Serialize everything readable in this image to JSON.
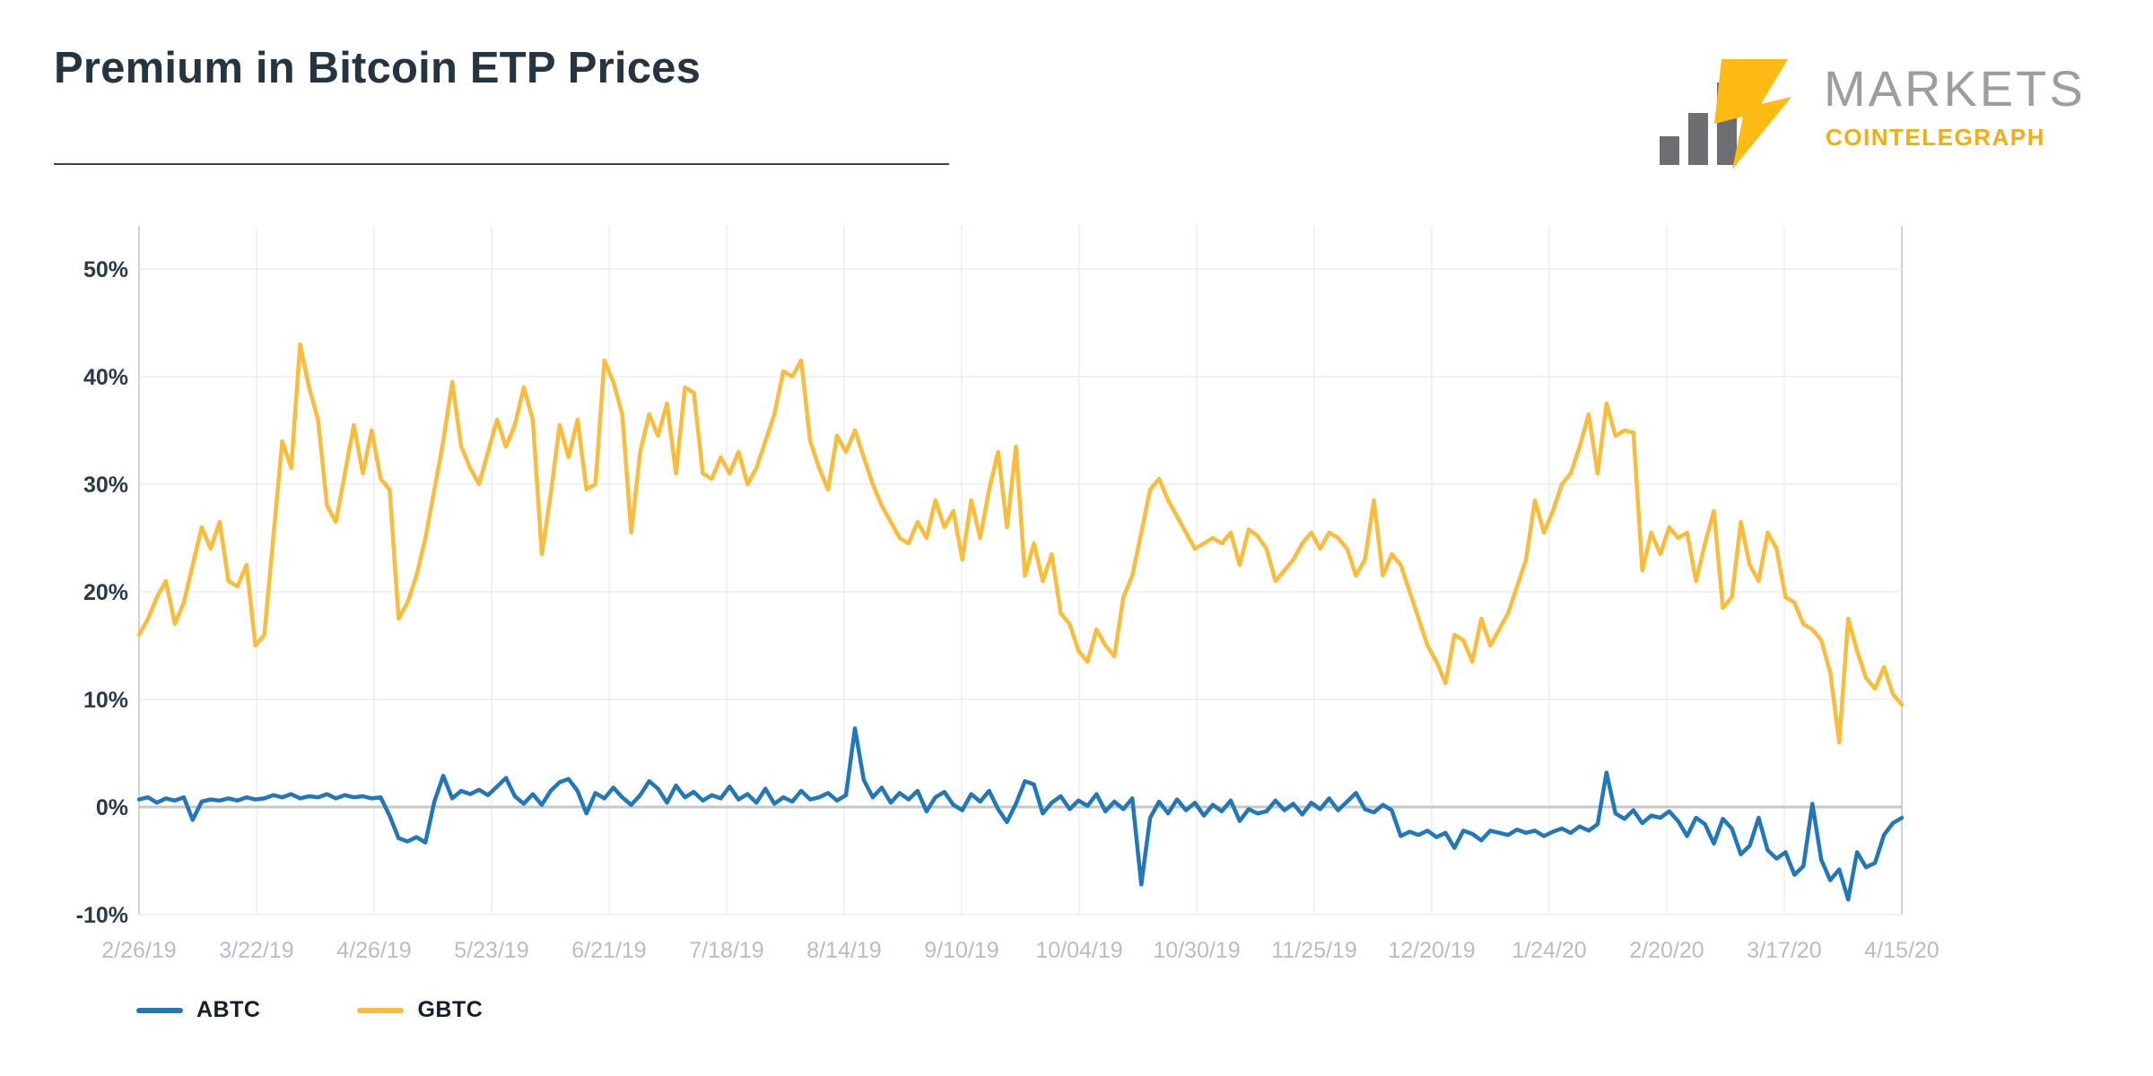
{
  "header": {
    "title": "Premium in Bitcoin ETP Prices",
    "brand": {
      "markets": "MARKETS",
      "cointelegraph": "COINTELEGRAPH"
    }
  },
  "colors": {
    "abtc": "#2177b8",
    "gbtc": "#fbbc3b",
    "title_text": "#253441",
    "axis_label_dark": "#2c3947",
    "axis_label_light": "#b7bdc4",
    "grid": "#ebedef",
    "zero_line": "#c6c8ca",
    "axis_line": "#d0d3d6",
    "logo_gray": "#6d6e71",
    "logo_yellow": "#fdbb13"
  },
  "legend": {
    "items": [
      {
        "label": "ABTC",
        "color": "#2177b8"
      },
      {
        "label": "GBTC",
        "color": "#fbbc3b"
      }
    ]
  },
  "chart_data": {
    "type": "line",
    "title": "Premium in Bitcoin ETP Prices",
    "xlabel": "",
    "ylabel": "",
    "ylim": [
      -12,
      56
    ],
    "grid": true,
    "legend_position": "bottom-left",
    "y_ticks": [
      {
        "value": 50,
        "label": "50%"
      },
      {
        "value": 40,
        "label": "40%"
      },
      {
        "value": 30,
        "label": "30%"
      },
      {
        "value": 20,
        "label": "20%"
      },
      {
        "value": 10,
        "label": "10%"
      },
      {
        "value": 0,
        "label": "0%"
      },
      {
        "value": -10,
        "label": "-10%"
      }
    ],
    "x_tick_labels": [
      "2/26/19",
      "3/22/19",
      "4/26/19",
      "5/23/19",
      "6/21/19",
      "7/18/19",
      "8/14/19",
      "9/10/19",
      "10/04/19",
      "10/30/19",
      "11/25/19",
      "12/20/19",
      "1/24/20",
      "2/20/20",
      "3/17/20",
      "4/15/20"
    ],
    "series": [
      {
        "name": "ABTC",
        "color": "#2177b8",
        "values": [
          0.7,
          0.9,
          0.4,
          0.8,
          0.6,
          0.9,
          -1.2,
          0.5,
          0.7,
          0.6,
          0.8,
          0.6,
          0.9,
          0.7,
          0.8,
          1.1,
          0.9,
          1.2,
          0.8,
          1,
          0.9,
          1.2,
          0.8,
          1.1,
          0.9,
          1,
          0.8,
          0.9,
          -0.8,
          -2.9,
          -3.2,
          -2.8,
          -3.3,
          0.5,
          2.9,
          0.8,
          1.5,
          1.2,
          1.6,
          1.1,
          1.9,
          2.7,
          1,
          0.3,
          1.2,
          0.2,
          1.5,
          2.3,
          2.6,
          1.5,
          -0.6,
          1.3,
          0.8,
          1.8,
          0.9,
          0.2,
          1.1,
          2.4,
          1.7,
          0.4,
          2,
          0.9,
          1.4,
          0.6,
          1.1,
          0.8,
          1.9,
          0.7,
          1.2,
          0.4,
          1.7,
          0.3,
          0.9,
          0.5,
          1.5,
          0.7,
          0.9,
          1.3,
          0.6,
          1.1,
          7.3,
          2.5,
          0.9,
          1.8,
          0.4,
          1.3,
          0.7,
          1.5,
          -0.4,
          0.9,
          1.4,
          0.2,
          -0.3,
          1.2,
          0.5,
          1.5,
          -0.2,
          -1.4,
          0.3,
          2.4,
          2.1,
          -0.6,
          0.4,
          1,
          -0.2,
          0.6,
          0.1,
          1.2,
          -0.4,
          0.5,
          -0.2,
          0.8,
          -7.2,
          -1,
          0.5,
          -0.6,
          0.7,
          -0.3,
          0.4,
          -0.8,
          0.2,
          -0.4,
          0.6,
          -1.3,
          -0.2,
          -0.6,
          -0.4,
          0.6,
          -0.3,
          0.3,
          -0.7,
          0.4,
          -0.2,
          0.8,
          -0.3,
          0.5,
          1.3,
          -0.2,
          -0.5,
          0.2,
          -0.3,
          -2.7,
          -2.3,
          -2.6,
          -2.2,
          -2.8,
          -2.4,
          -3.8,
          -2.2,
          -2.5,
          -3.1,
          -2.2,
          -2.4,
          -2.6,
          -2.1,
          -2.4,
          -2.2,
          -2.7,
          -2.3,
          -2,
          -2.4,
          -1.8,
          -2.2,
          -1.6,
          3.2,
          -0.6,
          -1.1,
          -0.3,
          -1.5,
          -0.8,
          -1,
          -0.4,
          -1.3,
          -2.7,
          -1,
          -1.6,
          -3.4,
          -1.1,
          -2,
          -4.4,
          -3.6,
          -1,
          -4,
          -4.8,
          -4.2,
          -6.3,
          -5.5,
          0.3,
          -4.9,
          -6.8,
          -5.8,
          -8.6,
          -4.2,
          -5.6,
          -5.2,
          -2.6,
          -1.5,
          -1
        ]
      },
      {
        "name": "GBTC",
        "color": "#fbbc3b",
        "values": [
          16,
          17.5,
          19.5,
          21,
          17,
          19,
          22.5,
          26,
          24,
          26.5,
          21,
          20.5,
          22.5,
          15,
          16,
          25,
          34,
          31.5,
          43,
          39,
          36,
          28,
          26.5,
          31,
          35.5,
          31,
          35,
          30.5,
          29.5,
          17.5,
          19,
          21.5,
          25,
          29.5,
          34,
          39.5,
          33.5,
          31.5,
          30,
          33,
          36,
          33.5,
          35.5,
          39,
          36,
          23.5,
          29,
          35.5,
          32.5,
          36,
          29.5,
          30,
          41.5,
          39.5,
          36.5,
          25.5,
          33,
          36.5,
          34.5,
          37.5,
          31,
          39,
          38.5,
          31,
          30.5,
          32.5,
          31,
          33,
          30,
          31.5,
          34,
          36.5,
          40.5,
          40,
          41.5,
          34,
          31.5,
          29.5,
          34.5,
          33,
          35,
          32.5,
          30,
          28,
          26.5,
          25,
          24.5,
          26.5,
          25,
          28.5,
          26,
          27.5,
          23,
          28.5,
          25,
          29.5,
          33,
          26,
          33.5,
          21.5,
          24.5,
          21,
          23.5,
          18,
          17,
          14.5,
          13.5,
          16.5,
          15,
          14,
          19.5,
          21.5,
          25.5,
          29.5,
          30.5,
          28.5,
          27,
          25.5,
          24,
          24.5,
          25,
          24.5,
          25.5,
          22.5,
          25.8,
          25.2,
          24,
          21,
          22,
          23,
          24.5,
          25.5,
          24,
          25.5,
          25,
          24,
          21.5,
          23,
          28.5,
          21.5,
          23.5,
          22.5,
          20,
          17.5,
          15,
          13.5,
          11.5,
          16,
          15.5,
          13.5,
          17.5,
          15,
          16.5,
          18,
          20.5,
          23,
          28.5,
          25.5,
          27.5,
          30,
          31,
          33.5,
          36.5,
          31,
          37.5,
          34.5,
          35,
          34.8,
          22,
          25.5,
          23.5,
          26,
          25,
          25.5,
          21,
          24.5,
          27.5,
          18.5,
          19.5,
          26.5,
          22.5,
          21,
          25.5,
          24,
          19.5,
          19,
          17,
          16.5,
          15.5,
          12.5,
          6,
          17.5,
          14.5,
          12,
          11,
          13,
          10.5,
          9.5
        ]
      }
    ]
  }
}
